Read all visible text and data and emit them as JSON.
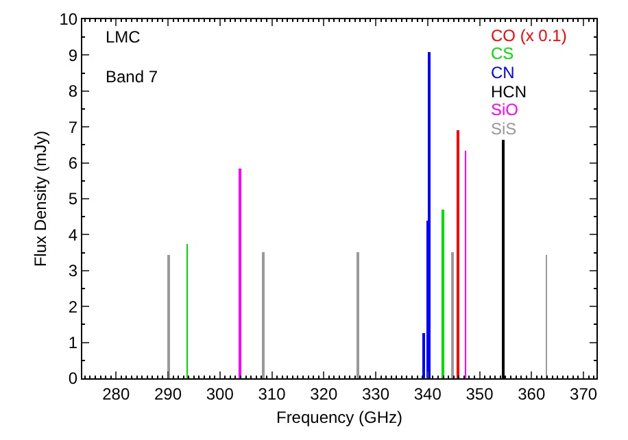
{
  "chart_data": {
    "type": "bar",
    "xlabel": "Frequency (GHz)",
    "ylabel": "Flux Density (mJy)",
    "annotations": [
      "LMC",
      "Band 7"
    ],
    "xlim": [
      273.5,
      372.5
    ],
    "xticks": [
      280,
      290,
      300,
      310,
      320,
      330,
      340,
      350,
      360,
      370
    ],
    "ylim": [
      0,
      10
    ],
    "yticks": [
      0,
      1,
      2,
      3,
      4,
      5,
      6,
      7,
      8,
      9,
      10
    ],
    "grid": false,
    "legend": "top right",
    "series": [
      {
        "name": "CO (x 0.1)",
        "color": "#ff0000",
        "x": [
          345.8
        ],
        "values": [
          6.9
        ]
      },
      {
        "name": "CS",
        "color": "#00e000",
        "x": [
          293.7,
          342.9
        ],
        "values": [
          3.75,
          4.7
        ]
      },
      {
        "name": "CN",
        "color": "#0000ff",
        "x": [
          339.3,
          340.0,
          340.25
        ],
        "values": [
          1.25,
          4.4,
          9.1
        ]
      },
      {
        "name": "HCN",
        "color": "#000000",
        "x": [
          354.6
        ],
        "values": [
          6.65
        ]
      },
      {
        "name": "SiO",
        "color": "#ff00ff",
        "x": [
          303.9,
          347.3
        ],
        "values": [
          5.85,
          6.35
        ]
      },
      {
        "name": "SiS",
        "color": "#999999",
        "x": [
          290.2,
          308.3,
          326.6,
          344.8,
          362.9
        ],
        "values": [
          3.45,
          3.5,
          3.5,
          3.5,
          3.45
        ]
      }
    ]
  }
}
